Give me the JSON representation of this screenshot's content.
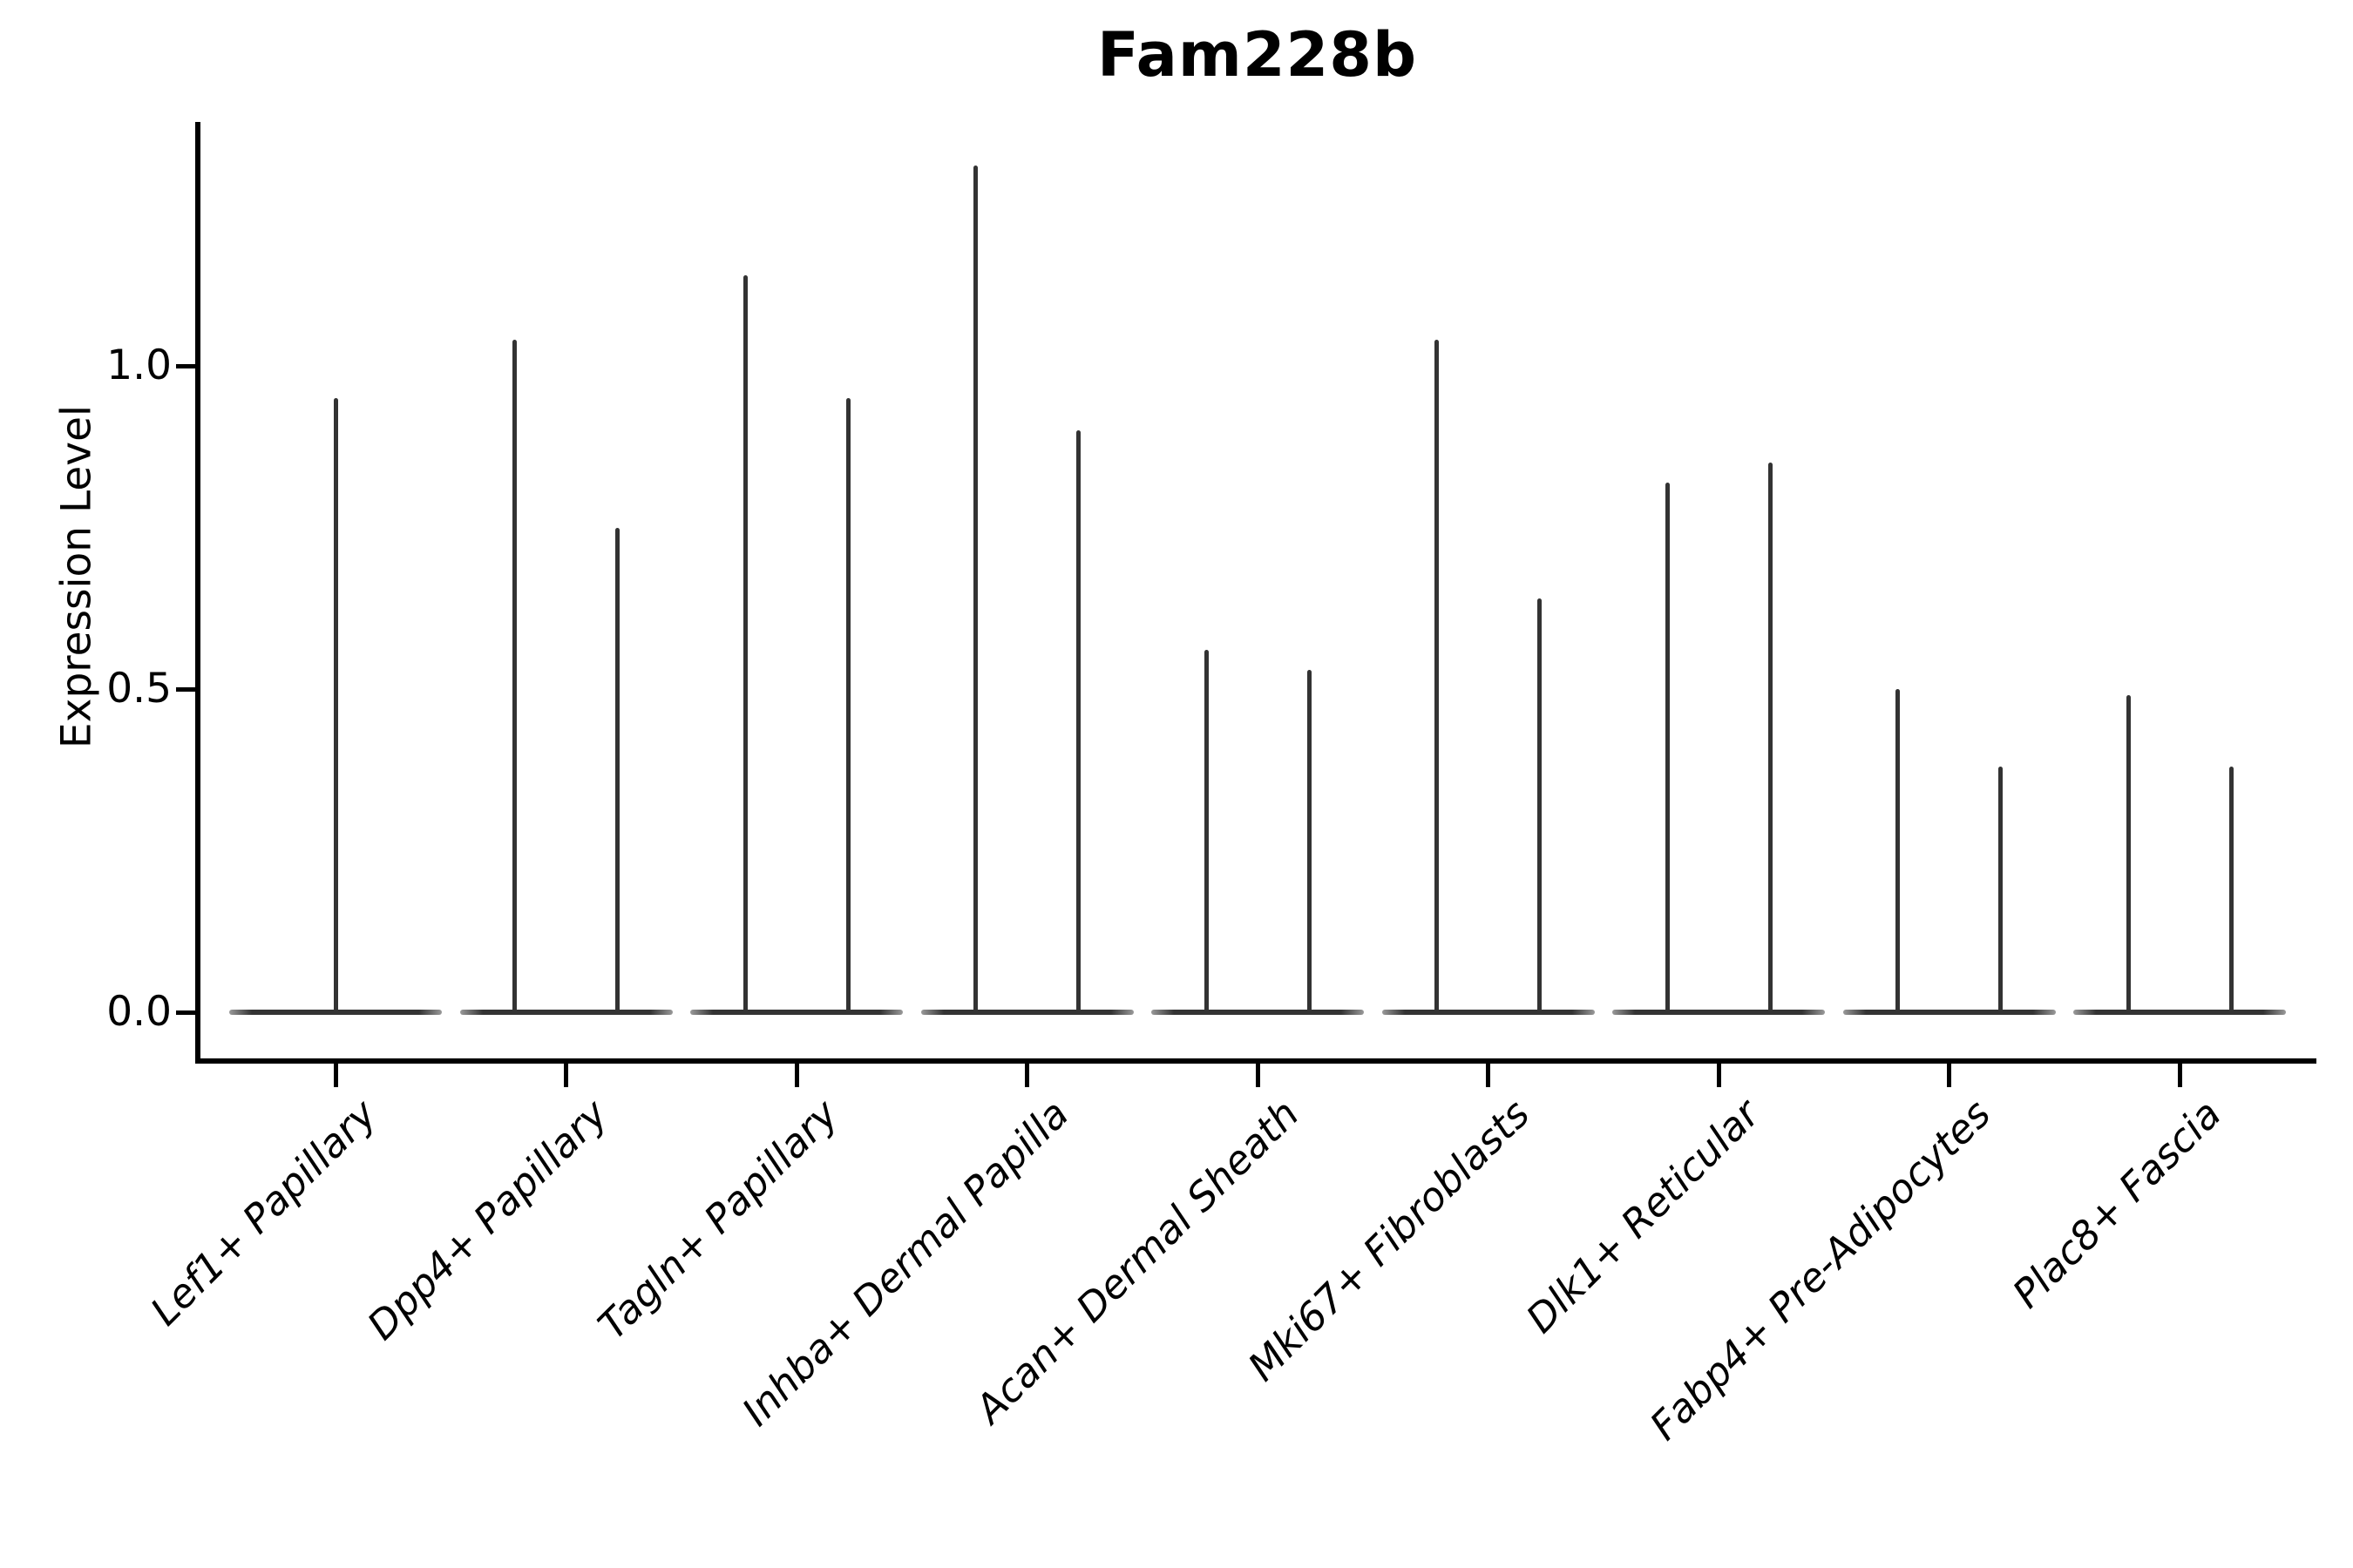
{
  "chart_data": {
    "type": "violin",
    "title": "Fam228b",
    "xlabel": "",
    "ylabel": "Expression Level",
    "ylim": [
      -0.07,
      1.38
    ],
    "yticks": [
      0.0,
      0.5,
      1.0
    ],
    "ytick_labels": [
      "0.0",
      "0.5",
      "1.0"
    ],
    "grid": false,
    "legend": "none",
    "categories": [
      "Lef1+ Papillary",
      "Dpp4+ Papillary",
      "Tagln+ Papillary",
      "Inhba+ Dermal Papilla",
      "Acan+ Dermal Sheath",
      "Mki67+ Fibroblasts",
      "Dlk1+ Reticular",
      "Fabp4+ Pre-Adipocytes",
      "Plac8+ Fascia"
    ],
    "violins": [
      {
        "category": "Lef1+ Papillary",
        "body_value": 0.0,
        "peak_values": [
          0.95
        ]
      },
      {
        "category": "Dpp4+ Papillary",
        "body_value": 0.0,
        "peak_values": [
          1.04,
          0.75
        ]
      },
      {
        "category": "Tagln+ Papillary",
        "body_value": 0.0,
        "peak_values": [
          1.14,
          0.95
        ]
      },
      {
        "category": "Inhba+ Dermal Papilla",
        "body_value": 0.0,
        "peak_values": [
          1.31,
          0.9
        ]
      },
      {
        "category": "Acan+ Dermal Sheath",
        "body_value": 0.0,
        "peak_values": [
          0.56,
          0.53
        ]
      },
      {
        "category": "Mki67+ Fibroblasts",
        "body_value": 0.0,
        "peak_values": [
          1.04,
          0.64
        ]
      },
      {
        "category": "Dlk1+ Reticular",
        "body_value": 0.0,
        "peak_values": [
          0.82,
          0.85
        ]
      },
      {
        "category": "Fabp4+ Pre-Adipocytes",
        "body_value": 0.0,
        "peak_values": [
          0.5,
          0.38
        ]
      },
      {
        "category": "Plac8+ Fascia",
        "body_value": 0.0,
        "peak_values": [
          0.49,
          0.38
        ]
      }
    ],
    "colors": {
      "violin": "#333333",
      "axis": "#000000",
      "text": "#000000",
      "background": "#ffffff"
    }
  }
}
